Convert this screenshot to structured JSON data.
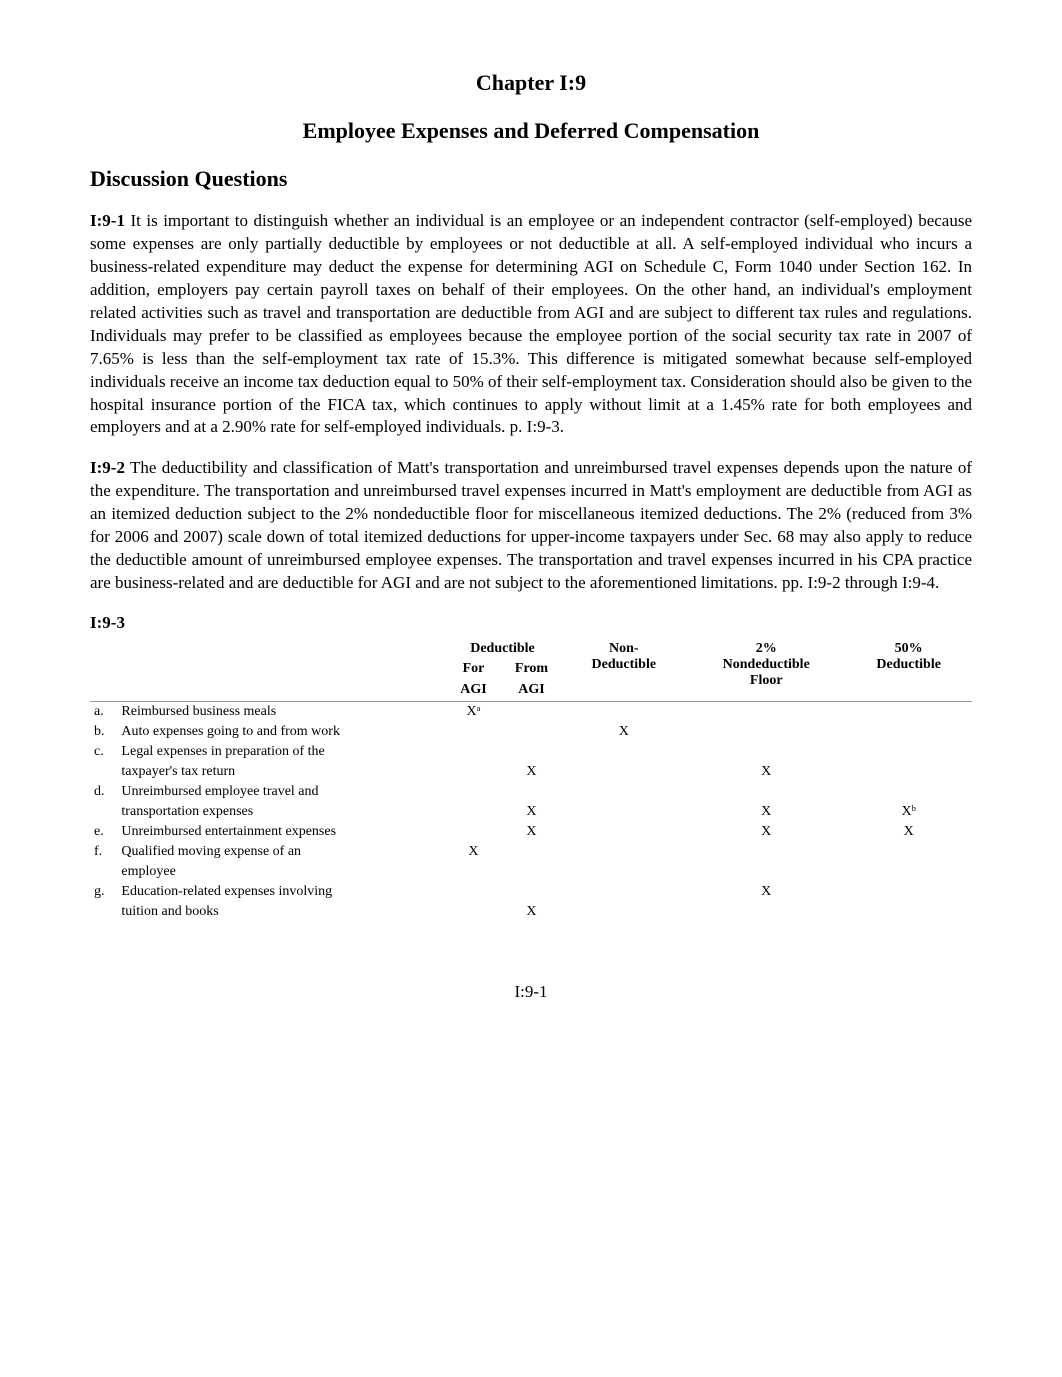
{
  "chapter": {
    "title": "Chapter I:9",
    "subtitle": "Employee Expenses and Deferred Compensation"
  },
  "section_heading": "Discussion Questions",
  "paragraphs": {
    "p1_label": "I:9-1",
    "p1_text": "   It is important to distinguish whether an individual is an employee or an independent contractor (self-employed) because some expenses are only partially deductible by employees or not deductible at all.  A self-employed individual who incurs a business-related expenditure may deduct the expense for determining AGI on Schedule C, Form 1040 under Section 162.  In addition, employers pay certain payroll taxes on behalf of their employees.  On the other hand, an individual's employment related activities such as travel and transportation are deductible from AGI and are subject to different tax rules and regulations.  Individuals may prefer to be classified as employees because the employee portion of the social security tax rate in 2007 of 7.65% is less than the self-employment tax rate of 15.3%.  This difference is mitigated somewhat because self-employed individuals receive an income tax deduction equal to 50% of their self-employment tax.  Consideration should also be given to the hospital insurance portion of the FICA tax, which continues to apply without limit at a 1.45% rate for both employees and employers and at a 2.90% rate for self-employed individuals.  p. I:9-3.",
    "p2_label": "I:9-2",
    "p2_text": "   The deductibility and classification of Matt's transportation and unreimbursed travel expenses depends upon the nature of the expenditure.  The transportation and unreimbursed travel expenses incurred in Matt's employment are deductible from AGI as an itemized deduction subject to the 2% nondeductible floor for miscellaneous itemized deductions.  The 2% (reduced from 3% for 2006 and 2007) scale down of total itemized deductions for upper-income taxpayers under Sec. 68 may also apply to reduce the deductible amount of unreimbursed employee expenses.  The transportation and travel expenses incurred in his CPA practice are business-related and are deductible for AGI and are not subject to the aforementioned limitations. pp. I:9-2 through I:9-4."
  },
  "table": {
    "label": "I:9-3",
    "headers": {
      "deductible_group": "Deductible",
      "for": "For",
      "from": "From",
      "agi1": "AGI",
      "agi2": "AGI",
      "nonded": "Non-\nDeductible",
      "floor": "2%\nNondeductible\nFloor",
      "fifty": "50%\nDeductible"
    },
    "rows": [
      {
        "letter": "a.",
        "desc": "Reimbursed business meals",
        "for_agi": "Xᵃ",
        "from_agi": "",
        "nonded": "",
        "floor": "",
        "fifty": ""
      },
      {
        "letter": "b.",
        "desc": "Auto expenses going to and from work",
        "for_agi": "",
        "from_agi": "",
        "nonded": "X",
        "floor": "",
        "fifty": ""
      },
      {
        "letter": "c.",
        "desc": "Legal expenses in preparation of the",
        "for_agi": "",
        "from_agi": "",
        "nonded": "",
        "floor": "",
        "fifty": ""
      },
      {
        "letter": "",
        "desc": "taxpayer's tax return",
        "indent": true,
        "for_agi": "",
        "from_agi": "X",
        "nonded": "",
        "floor": "X",
        "fifty": ""
      },
      {
        "letter": "d.",
        "desc": "Unreimbursed employee travel and",
        "for_agi": "",
        "from_agi": "",
        "nonded": "",
        "floor": "",
        "fifty": ""
      },
      {
        "letter": "",
        "desc": "transportation expenses",
        "indent": true,
        "for_agi": "",
        "from_agi": "X",
        "nonded": "",
        "floor": "X",
        "fifty": "Xᵇ"
      },
      {
        "letter": "e.",
        "desc": "Unreimbursed entertainment expenses",
        "for_agi": "",
        "from_agi": "X",
        "nonded": "",
        "floor": "X",
        "fifty": "X"
      },
      {
        "letter": "f.",
        "desc": "Qualified moving expense of an",
        "for_agi": "X",
        "from_agi": "",
        "nonded": "",
        "floor": "",
        "fifty": ""
      },
      {
        "letter": "",
        "desc": "employee",
        "indent": true,
        "for_agi": "",
        "from_agi": "",
        "nonded": "",
        "floor": "",
        "fifty": ""
      },
      {
        "letter": "g.",
        "desc": "Education-related expenses involving",
        "for_agi": "",
        "from_agi": "",
        "nonded": "",
        "floor": "X",
        "fifty": ""
      },
      {
        "letter": "",
        "desc": "tuition and books",
        "indent": true,
        "for_agi": "",
        "from_agi": "X",
        "nonded": "",
        "floor": "",
        "fifty": ""
      }
    ]
  },
  "page_number": "I:9-1",
  "colors": {
    "text": "#000000",
    "background": "#ffffff",
    "table_border": "#999999"
  },
  "typography": {
    "body_font": "Times New Roman",
    "body_size_pt": 12,
    "heading_size_pt": 16,
    "table_size_pt": 10
  }
}
